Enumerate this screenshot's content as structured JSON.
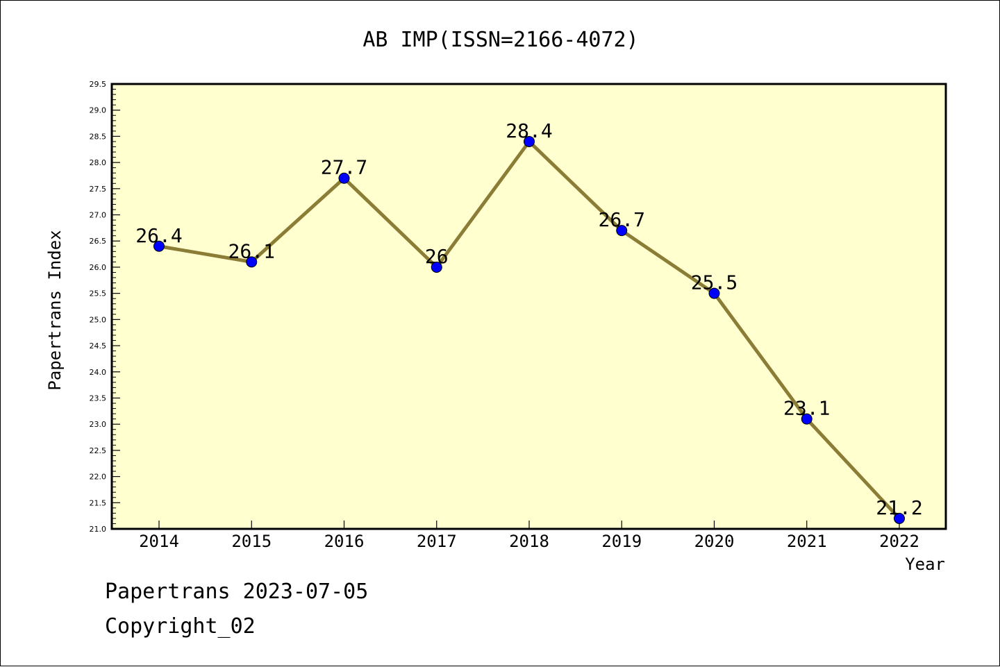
{
  "chart_data": {
    "type": "line",
    "title": "AB IMP(ISSN=2166-4072)",
    "xlabel": "Year",
    "ylabel": "Papertrans Index",
    "categories": [
      "2014",
      "2015",
      "2016",
      "2017",
      "2018",
      "2019",
      "2020",
      "2021",
      "2022"
    ],
    "values": [
      26.4,
      26.1,
      27.7,
      26.0,
      28.4,
      26.7,
      25.5,
      23.1,
      21.2
    ],
    "data_labels": [
      "26.4",
      "26.1",
      "27.7",
      "26",
      "28.4",
      "26.7",
      "25.5",
      "23.1",
      "21.2"
    ],
    "ylim": [
      21.0,
      29.5
    ],
    "ytick_step": 0.5,
    "grid": false,
    "line_color": "#8b7d35",
    "marker_color": "#0000ff",
    "plot_background": "#ffffd0"
  },
  "footer": {
    "line1": "Papertrans 2023-07-05",
    "line2": "Copyright_02"
  }
}
